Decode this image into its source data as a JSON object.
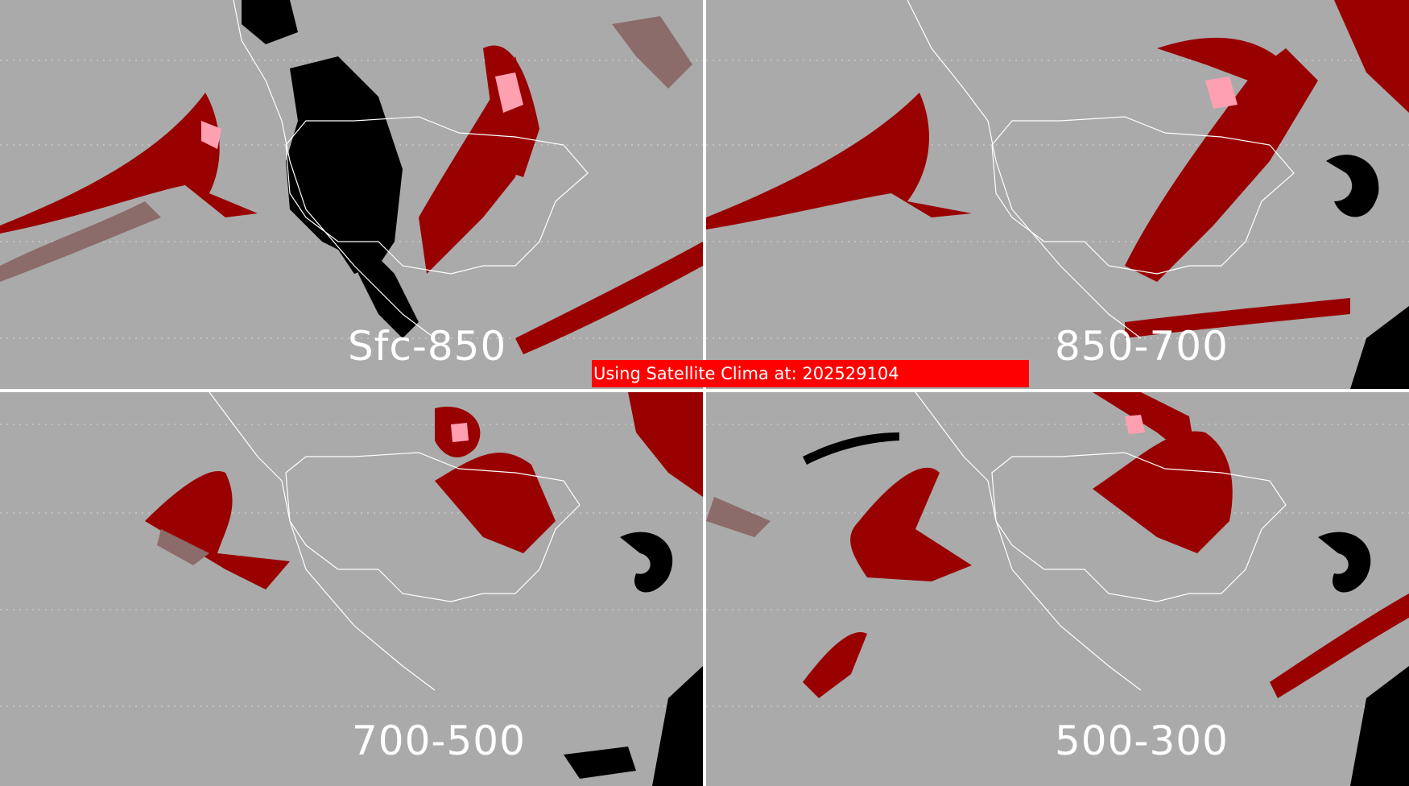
{
  "panels": [
    {
      "label": "Sfc-850"
    },
    {
      "label": "850-700"
    },
    {
      "label": "700-500"
    },
    {
      "label": "500-300"
    }
  ],
  "banner": {
    "text": "Using Satellite Clima at: 202529104"
  },
  "legend_colors": {
    "background": "#aaaaaa",
    "low": "#8c6b6b",
    "mid": "#990000",
    "high": "#ffa0b0",
    "none": "#000000",
    "coast": "#ffffff"
  }
}
